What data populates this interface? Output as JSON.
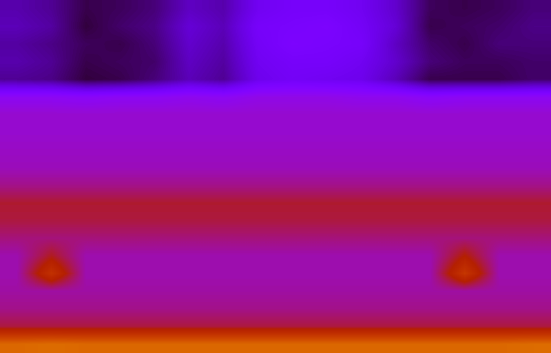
{
  "chart_data": {
    "type": "heatmap",
    "tick_labels": false,
    "color_range": [
      0,
      1
    ],
    "cells": [
      [
        0.12,
        0.1,
        0.05,
        0.06,
        0.08,
        0.14,
        0.12,
        0.2,
        0.22,
        0.22,
        0.2,
        0.15,
        0.06,
        0.05,
        0.06,
        0.08
      ],
      [
        0.13,
        0.11,
        0.04,
        0.07,
        0.09,
        0.16,
        0.13,
        0.22,
        0.23,
        0.24,
        0.21,
        0.16,
        0.05,
        0.06,
        0.07,
        0.09
      ],
      [
        0.11,
        0.09,
        0.06,
        0.05,
        0.08,
        0.15,
        0.12,
        0.21,
        0.24,
        0.23,
        0.22,
        0.14,
        0.07,
        0.05,
        0.08,
        0.08
      ],
      [
        0.12,
        0.1,
        0.05,
        0.06,
        0.07,
        0.14,
        0.11,
        0.2,
        0.22,
        0.22,
        0.2,
        0.15,
        0.08,
        0.06,
        0.06,
        0.07
      ],
      [
        0.1,
        0.09,
        0.04,
        0.05,
        0.08,
        0.13,
        0.1,
        0.19,
        0.21,
        0.2,
        0.19,
        0.13,
        0.05,
        0.05,
        0.05,
        0.07
      ],
      [
        0.3,
        0.3,
        0.29,
        0.3,
        0.3,
        0.31,
        0.3,
        0.32,
        0.32,
        0.32,
        0.31,
        0.31,
        0.29,
        0.3,
        0.3,
        0.3
      ],
      [
        0.35,
        0.35,
        0.35,
        0.35,
        0.35,
        0.35,
        0.35,
        0.35,
        0.35,
        0.35,
        0.35,
        0.35,
        0.35,
        0.35,
        0.35,
        0.35
      ],
      [
        0.35,
        0.35,
        0.35,
        0.35,
        0.35,
        0.35,
        0.35,
        0.35,
        0.35,
        0.35,
        0.35,
        0.35,
        0.35,
        0.35,
        0.35,
        0.35
      ],
      [
        0.36,
        0.36,
        0.36,
        0.36,
        0.36,
        0.36,
        0.36,
        0.36,
        0.36,
        0.36,
        0.36,
        0.36,
        0.36,
        0.36,
        0.36,
        0.36
      ],
      [
        0.37,
        0.37,
        0.37,
        0.37,
        0.37,
        0.37,
        0.37,
        0.37,
        0.37,
        0.37,
        0.37,
        0.37,
        0.37,
        0.37,
        0.37,
        0.37
      ],
      [
        0.41,
        0.41,
        0.41,
        0.41,
        0.41,
        0.41,
        0.41,
        0.41,
        0.41,
        0.41,
        0.41,
        0.41,
        0.41,
        0.41,
        0.41,
        0.41
      ],
      [
        0.47,
        0.47,
        0.47,
        0.47,
        0.47,
        0.47,
        0.47,
        0.47,
        0.47,
        0.47,
        0.47,
        0.47,
        0.47,
        0.47,
        0.47,
        0.47
      ],
      [
        0.46,
        0.46,
        0.46,
        0.46,
        0.46,
        0.46,
        0.46,
        0.46,
        0.46,
        0.46,
        0.46,
        0.46,
        0.46,
        0.46,
        0.46,
        0.46
      ],
      [
        0.42,
        0.42,
        0.42,
        0.42,
        0.42,
        0.42,
        0.42,
        0.42,
        0.42,
        0.42,
        0.42,
        0.42,
        0.42,
        0.42,
        0.42,
        0.42
      ],
      [
        0.38,
        0.48,
        0.38,
        0.38,
        0.38,
        0.38,
        0.38,
        0.38,
        0.38,
        0.38,
        0.38,
        0.38,
        0.38,
        0.5,
        0.38,
        0.38
      ],
      [
        0.38,
        0.58,
        0.38,
        0.38,
        0.38,
        0.38,
        0.38,
        0.38,
        0.38,
        0.38,
        0.38,
        0.38,
        0.38,
        0.6,
        0.38,
        0.38
      ],
      [
        0.39,
        0.39,
        0.39,
        0.39,
        0.39,
        0.39,
        0.39,
        0.39,
        0.39,
        0.39,
        0.39,
        0.39,
        0.39,
        0.39,
        0.39,
        0.39
      ],
      [
        0.41,
        0.41,
        0.41,
        0.41,
        0.41,
        0.41,
        0.41,
        0.41,
        0.41,
        0.41,
        0.41,
        0.41,
        0.41,
        0.41,
        0.41,
        0.41
      ],
      [
        0.46,
        0.46,
        0.46,
        0.46,
        0.46,
        0.46,
        0.46,
        0.46,
        0.46,
        0.46,
        0.46,
        0.46,
        0.46,
        0.46,
        0.46,
        0.46
      ],
      [
        0.74,
        0.75,
        0.74,
        0.74,
        0.74,
        0.74,
        0.74,
        0.74,
        0.74,
        0.74,
        0.74,
        0.74,
        0.74,
        0.74,
        0.74,
        0.75
      ]
    ]
  }
}
